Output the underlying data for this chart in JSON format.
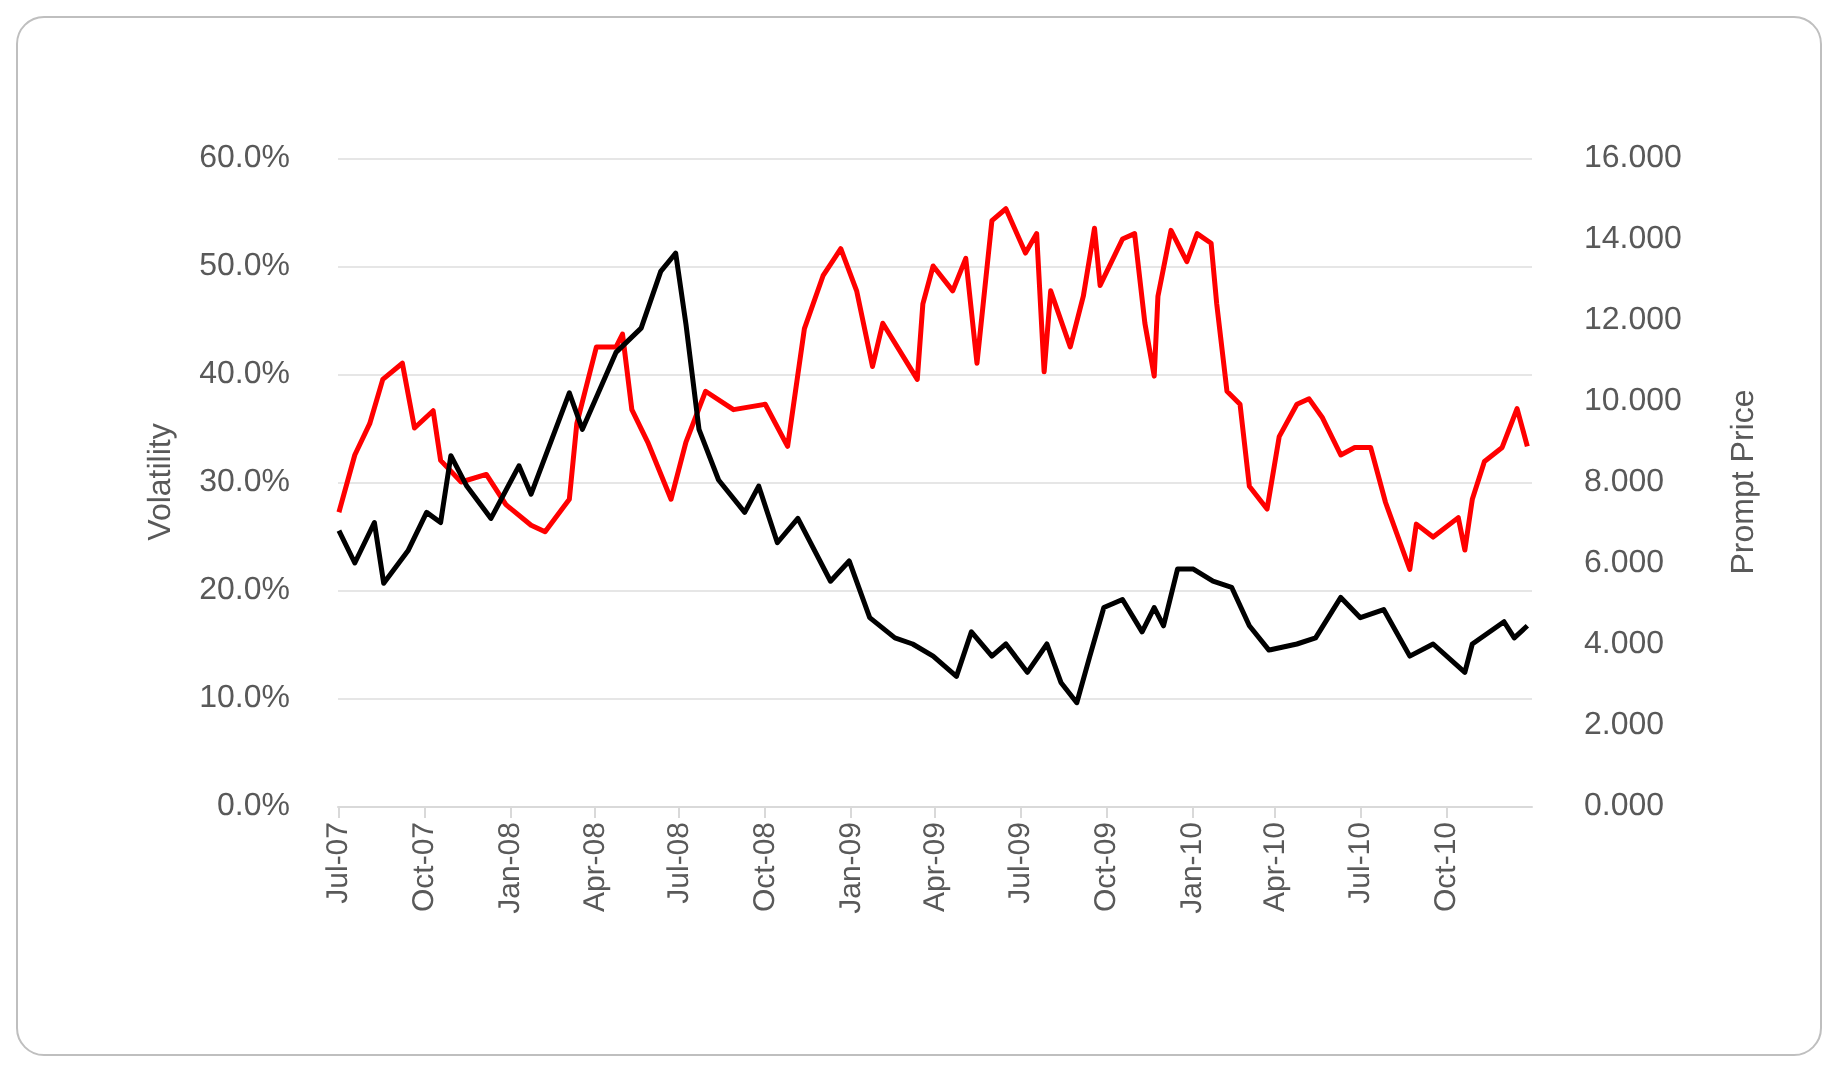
{
  "chart_data": {
    "type": "line",
    "ylabel": "Volatility",
    "y2label": "Prompt Price",
    "grid": "y",
    "xlim": [
      "2007-07-01",
      "2011-01-01"
    ],
    "xticks": [
      {
        "value": "2007-07-01",
        "label": "Jul-07"
      },
      {
        "value": "2007-10-01",
        "label": "Oct-07"
      },
      {
        "value": "2008-01-01",
        "label": "Jan-08"
      },
      {
        "value": "2008-04-01",
        "label": "Apr-08"
      },
      {
        "value": "2008-07-01",
        "label": "Jul-08"
      },
      {
        "value": "2008-10-01",
        "label": "Oct-08"
      },
      {
        "value": "2009-01-01",
        "label": "Jan-09"
      },
      {
        "value": "2009-04-01",
        "label": "Apr-09"
      },
      {
        "value": "2009-07-01",
        "label": "Jul-09"
      },
      {
        "value": "2009-10-01",
        "label": "Oct-09"
      },
      {
        "value": "2010-01-01",
        "label": "Jan-10"
      },
      {
        "value": "2010-04-01",
        "label": "Apr-10"
      },
      {
        "value": "2010-07-01",
        "label": "Jul-10"
      },
      {
        "value": "2010-10-01",
        "label": "Oct-10"
      }
    ],
    "ylim": [
      0,
      60
    ],
    "yticks": [
      {
        "value": 0,
        "label": "0.0%"
      },
      {
        "value": 10,
        "label": "10.0%"
      },
      {
        "value": 20,
        "label": "20.0%"
      },
      {
        "value": 30,
        "label": "30.0%"
      },
      {
        "value": 40,
        "label": "40.0%"
      },
      {
        "value": 50,
        "label": "50.0%"
      },
      {
        "value": 60,
        "label": "60.0%"
      }
    ],
    "y2lim": [
      0,
      16
    ],
    "y2ticks": [
      {
        "value": 0,
        "label": "0.000"
      },
      {
        "value": 2,
        "label": "2.000"
      },
      {
        "value": 4,
        "label": "4.000"
      },
      {
        "value": 6,
        "label": "6.000"
      },
      {
        "value": 8,
        "label": "8.000"
      },
      {
        "value": 10,
        "label": "10.000"
      },
      {
        "value": 12,
        "label": "12.000"
      },
      {
        "value": 14,
        "label": "14.000"
      },
      {
        "value": 16,
        "label": "16.000"
      }
    ],
    "series": [
      {
        "color": "#ff0000",
        "x": [
          "2007-07-02",
          "2007-07-19",
          "2007-08-04",
          "2007-08-18",
          "2007-09-08",
          "2007-09-21",
          "2007-10-11",
          "2007-10-19",
          "2007-11-10",
          "2007-12-07",
          "2007-12-28",
          "2008-01-24",
          "2008-02-08",
          "2008-03-05",
          "2008-03-13",
          "2008-04-03",
          "2008-04-24",
          "2008-05-01",
          "2008-05-11",
          "2008-05-28",
          "2008-06-22",
          "2008-07-08",
          "2008-07-29",
          "2008-08-28",
          "2008-10-01",
          "2008-10-25",
          "2008-11-12",
          "2008-12-02",
          "2008-12-21",
          "2009-01-07",
          "2009-01-24",
          "2009-02-04",
          "2009-03-13",
          "2009-03-19",
          "2009-03-30",
          "2009-04-20",
          "2009-05-04",
          "2009-05-16",
          "2009-06-01",
          "2009-06-16",
          "2009-07-07",
          "2009-07-19",
          "2009-07-27",
          "2009-08-03",
          "2009-08-24",
          "2009-09-07",
          "2009-09-19",
          "2009-09-25",
          "2009-10-19",
          "2009-11-01",
          "2009-11-12",
          "2009-11-22",
          "2009-11-26",
          "2009-12-10",
          "2009-12-27",
          "2010-01-07",
          "2010-01-22",
          "2010-01-28",
          "2010-02-08",
          "2010-02-22",
          "2010-03-04",
          "2010-03-23",
          "2010-04-05",
          "2010-04-24",
          "2010-05-07",
          "2010-05-21",
          "2010-06-10",
          "2010-06-25",
          "2010-07-12",
          "2010-07-28",
          "2010-08-23",
          "2010-08-30",
          "2010-09-17",
          "2010-10-14",
          "2010-10-21",
          "2010-10-29",
          "2010-11-11",
          "2010-11-30",
          "2010-12-16",
          "2010-12-27"
        ],
        "values": [
          27.2,
          32.5,
          35.4,
          39.5,
          41,
          35,
          36.6,
          32,
          30,
          30.7,
          27.9,
          26,
          25.4,
          28.4,
          35.4,
          42.5,
          42.5,
          43.7,
          36.7,
          33.7,
          28.4,
          33.7,
          38.4,
          36.7,
          37.2,
          33.3,
          44.2,
          49.1,
          51.6,
          47.7,
          40.7,
          44.7,
          39.5,
          46.5,
          50,
          47.7,
          50.7,
          41,
          54.2,
          55.3,
          51.2,
          53,
          40.2,
          47.7,
          42.5,
          47.2,
          53.5,
          48.2,
          52.5,
          53,
          44.7,
          39.8,
          47.2,
          53.3,
          50.4,
          53,
          52.1,
          46.5,
          38.4,
          37.2,
          29.6,
          27.5,
          34.2,
          37.2,
          37.7,
          36,
          32.5,
          33.2,
          33.2,
          28.1,
          21.9,
          26.1,
          24.9,
          26.7,
          23.7,
          28.4,
          31.9,
          33.2,
          36.8,
          33.3
        ]
      },
      {
        "color": "#000000",
        "axis": "y2",
        "x": [
          "2007-07-02",
          "2007-07-19",
          "2007-08-09",
          "2007-08-19",
          "2007-09-14",
          "2007-10-04",
          "2007-10-19",
          "2007-10-30",
          "2007-11-16",
          "2007-12-12",
          "2008-01-11",
          "2008-01-24",
          "2008-03-05",
          "2008-03-19",
          "2008-04-24",
          "2008-05-21",
          "2008-06-11",
          "2008-06-27",
          "2008-07-08",
          "2008-07-22",
          "2008-08-12",
          "2008-09-09",
          "2008-09-24",
          "2008-10-14",
          "2008-11-05",
          "2008-12-10",
          "2008-12-30",
          "2009-01-21",
          "2009-02-17",
          "2009-03-08",
          "2009-03-30",
          "2009-04-24",
          "2009-05-10",
          "2009-06-01",
          "2009-06-16",
          "2009-07-09",
          "2009-07-30",
          "2009-08-14",
          "2009-08-31",
          "2009-09-14",
          "2009-09-29",
          "2009-10-19",
          "2009-11-09",
          "2009-11-22",
          "2009-12-02",
          "2009-12-17",
          "2010-01-03",
          "2010-01-24",
          "2010-02-13",
          "2010-03-04",
          "2010-03-25",
          "2010-04-24",
          "2010-05-14",
          "2010-06-10",
          "2010-07-01",
          "2010-07-26",
          "2010-08-23",
          "2010-09-17",
          "2010-10-21",
          "2010-10-29",
          "2010-12-02",
          "2010-12-13",
          "2010-12-27"
        ],
        "values": [
          6.8,
          6.0,
          7.0,
          5.5,
          6.3,
          7.25,
          7.0,
          8.65,
          7.9,
          7.1,
          8.4,
          7.7,
          10.2,
          9.3,
          11.2,
          11.8,
          13.2,
          13.65,
          11.9,
          9.3,
          8.05,
          7.25,
          7.9,
          6.5,
          7.1,
          5.55,
          6.05,
          4.65,
          4.15,
          4.0,
          3.7,
          3.2,
          4.3,
          3.7,
          4.0,
          3.3,
          4.0,
          3.05,
          2.55,
          3.7,
          4.9,
          5.1,
          4.3,
          4.9,
          4.45,
          5.85,
          5.85,
          5.55,
          5.4,
          4.45,
          3.85,
          4.0,
          4.15,
          5.15,
          4.65,
          4.85,
          3.7,
          4.0,
          3.3,
          4.0,
          4.55,
          4.15,
          4.45
        ]
      }
    ]
  }
}
